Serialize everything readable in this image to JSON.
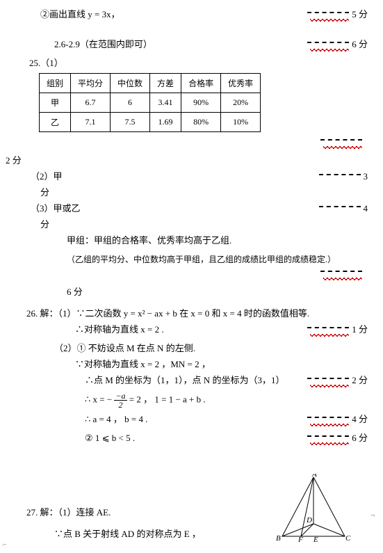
{
  "l1": {
    "text": "②画出直线 y = 3x，",
    "score": "5 分"
  },
  "l2": {
    "text": "2.6-2.9（在范围内即可）",
    "score": "6 分"
  },
  "q25": {
    "label": "25.（1）"
  },
  "table": {
    "headers": [
      "组别",
      "平均分",
      "中位数",
      "方差",
      "合格率",
      "优秀率"
    ],
    "rows": [
      [
        "甲",
        "6.7",
        "6",
        "3.41",
        "90%",
        "20%"
      ],
      [
        "乙",
        "7.1",
        "7.5",
        "1.69",
        "80%",
        "10%"
      ]
    ]
  },
  "t_score": "2 分",
  "l3": {
    "text": "（2）甲",
    "score": "3"
  },
  "fen": "分",
  "l4": {
    "text": "（3）甲或乙",
    "score": "4"
  },
  "l5": "甲组：甲组的合格率、优秀率均高于乙组.",
  "l6": "（乙组的平均分、中位数均高于甲组，且乙组的成绩比甲组的成绩稳定.）",
  "l7": "6 分",
  "q26": {
    "a": "26.  解：（1）∵二次函数 y = x² − ax + b 在 x = 0 和 x = 4 时的函数值相等.",
    "b": "∴对称轴为直线 x = 2 .",
    "bscore": "1 分",
    "c": "（2）① 不妨设点 M 在点 N 的左侧.",
    "d": "∵对称轴为直线 x = 2 ，MN = 2 ，",
    "e1": "∴点 M 的坐标为（1，1），点 N 的坐标为（3，1）",
    "escore": "2 分",
    "f1": "∴ x = −",
    "f2": "= 2 ， 1 = 1 − a + b .",
    "g": "∴ a = 4 ， b = 4 .",
    "gscore": "4 分",
    "h": "② 1 ⩽ b < 5 .",
    "hscore": "6 分"
  },
  "q27": {
    "a": "27.  解：（1）连接 AE.",
    "b": "∵点 B 关于射线 AD 的对称点为 E ，"
  },
  "tri": {
    "A": "A",
    "B": "B",
    "C": "C",
    "D": "D",
    "E": "E",
    "F": "F"
  },
  "frac": {
    "num": "−a",
    "den": "2"
  }
}
